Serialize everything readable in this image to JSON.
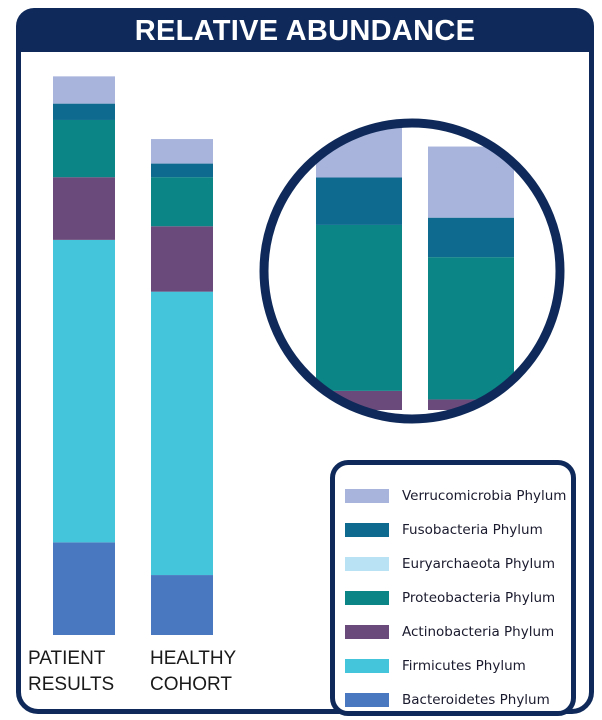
{
  "title": "RELATIVE ABUNDANCE",
  "colors": {
    "frame": "#0f2a5a",
    "Verrucomicrobia Phylum": "#a8b4dc",
    "Fusobacteria Phylum": "#0f6a8f",
    "Euryarchaeota Phylum": "#b9e3f5",
    "Proteobacteria Phylum": "#0b8585",
    "Actinobacteria Phylum": "#6a4a7a",
    "Firmicutes Phylum": "#45c5dc",
    "Bacteroidetes Phylum": "#4a78c0"
  },
  "legend": [
    "Verrucomicrobia Phylum",
    "Fusobacteria Phylum",
    "Euryarchaeota Phylum",
    "Proteobacteria Phylum",
    "Actinobacteria Phylum",
    "Firmicutes Phylum",
    "Bacteroidetes Phylum"
  ],
  "chart_data": {
    "type": "bar",
    "stacked": true,
    "categories": [
      "PATIENT RESULTS",
      "HEALTHY COHORT"
    ],
    "category_labels": [
      [
        "PATIENT",
        "RESULTS"
      ],
      [
        "HEALTHY",
        "COHORT"
      ]
    ],
    "series": [
      {
        "name": "Bacteroidetes Phylum",
        "values": [
          17,
          11
        ]
      },
      {
        "name": "Firmicutes Phylum",
        "values": [
          55.5,
          52
        ]
      },
      {
        "name": "Actinobacteria Phylum",
        "values": [
          11.5,
          12
        ]
      },
      {
        "name": "Proteobacteria Phylum",
        "values": [
          10.5,
          9
        ]
      },
      {
        "name": "Euryarchaeota Phylum",
        "values": [
          0,
          0
        ]
      },
      {
        "name": "Fusobacteria Phylum",
        "values": [
          3,
          2.5
        ]
      },
      {
        "name": "Verrucomicrobia Phylum",
        "values": [
          5,
          4.5
        ]
      }
    ],
    "inset": {
      "description_zoom": true,
      "series_shown": [
        "Actinobacteria Phylum",
        "Proteobacteria Phylum",
        "Fusobacteria Phylum",
        "Verrucomicrobia Phylum"
      ]
    },
    "ylim": [
      0,
      100
    ],
    "grid": false,
    "legend_position": "bottom-right"
  }
}
